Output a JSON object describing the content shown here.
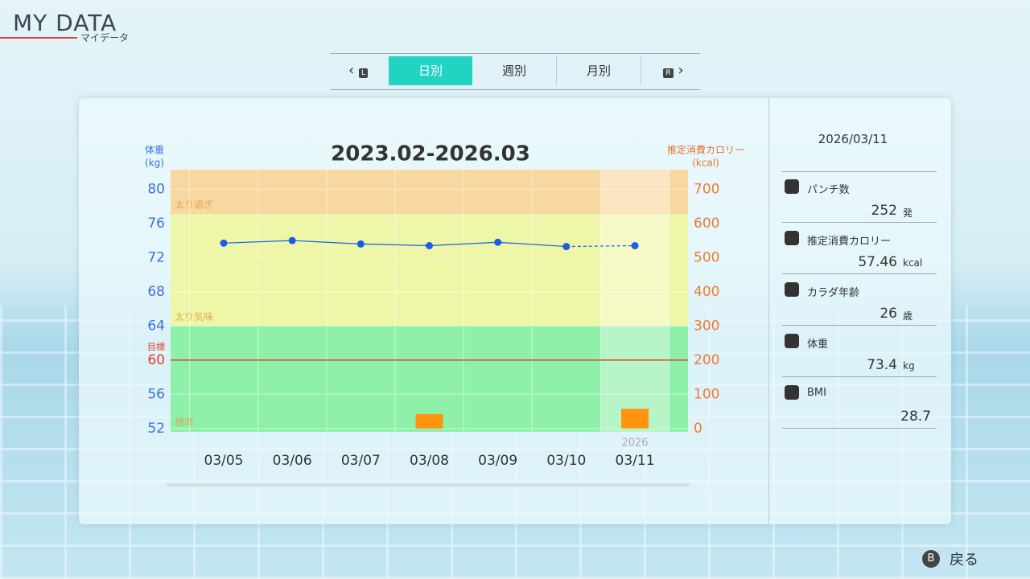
{
  "header": {
    "title": "MY DATA",
    "subtitle": "マイデータ"
  },
  "tabs": {
    "left_button": "L",
    "right_button": "R",
    "items": [
      "日別",
      "週別",
      "月別"
    ],
    "active": 0
  },
  "chart_data": {
    "type": "line-bar",
    "title": "2023.02-2026.03",
    "y_label": [
      "体重",
      "(kg)"
    ],
    "y2_label": [
      "推定消費カロリー",
      "(kcal)"
    ],
    "categories": [
      "03/05",
      "03/06",
      "03/07",
      "03/08",
      "03/09",
      "03/10",
      "03/11"
    ],
    "year_label": "2026",
    "ylim": [
      51.6,
      82.3
    ],
    "yticks": [
      52,
      56,
      60,
      64,
      68,
      72,
      76,
      80
    ],
    "y2lim": [
      -10,
      757.5
    ],
    "y2ticks": [
      0,
      100,
      200,
      300,
      400,
      500,
      600,
      700
    ],
    "series": [
      {
        "type": "line",
        "color": "#1a5ee8",
        "values": [
          73.7,
          74.0,
          73.6,
          73.4,
          73.8,
          73.3,
          73.4
        ],
        "dashed_last": true
      },
      {
        "type": "bar",
        "axis": "y2",
        "color": "#ff9410",
        "values": [
          null,
          null,
          null,
          42,
          null,
          null,
          57.46
        ]
      }
    ],
    "zones": [
      {
        "label": "太り過ぎ",
        "from": 77.1,
        "to": 82.3,
        "color": "#f9d7a0"
      },
      {
        "label": "太り気味",
        "from": 64,
        "to": 77.1,
        "color": "#eef6a8"
      },
      {
        "label": "標準",
        "from": 51.6,
        "to": 64,
        "color": "#8ff0aa"
      }
    ],
    "target": {
      "label": "目標",
      "value": 60,
      "color": "#e0402a"
    },
    "grid": true
  },
  "side_panel": {
    "date": "2026/03/11",
    "items": [
      {
        "label": "パンチ数",
        "value": "252",
        "unit": "発"
      },
      {
        "label": "推定消費カロリー",
        "value": "57.46",
        "unit": "kcal"
      },
      {
        "label": "カラダ年齢",
        "value": "26",
        "unit": "歳"
      },
      {
        "label": "体重",
        "value": "73.4",
        "unit": "kg"
      },
      {
        "label": "BMI",
        "value": "28.7"
      }
    ]
  },
  "footer": {
    "button": "B",
    "label": "戻る"
  }
}
